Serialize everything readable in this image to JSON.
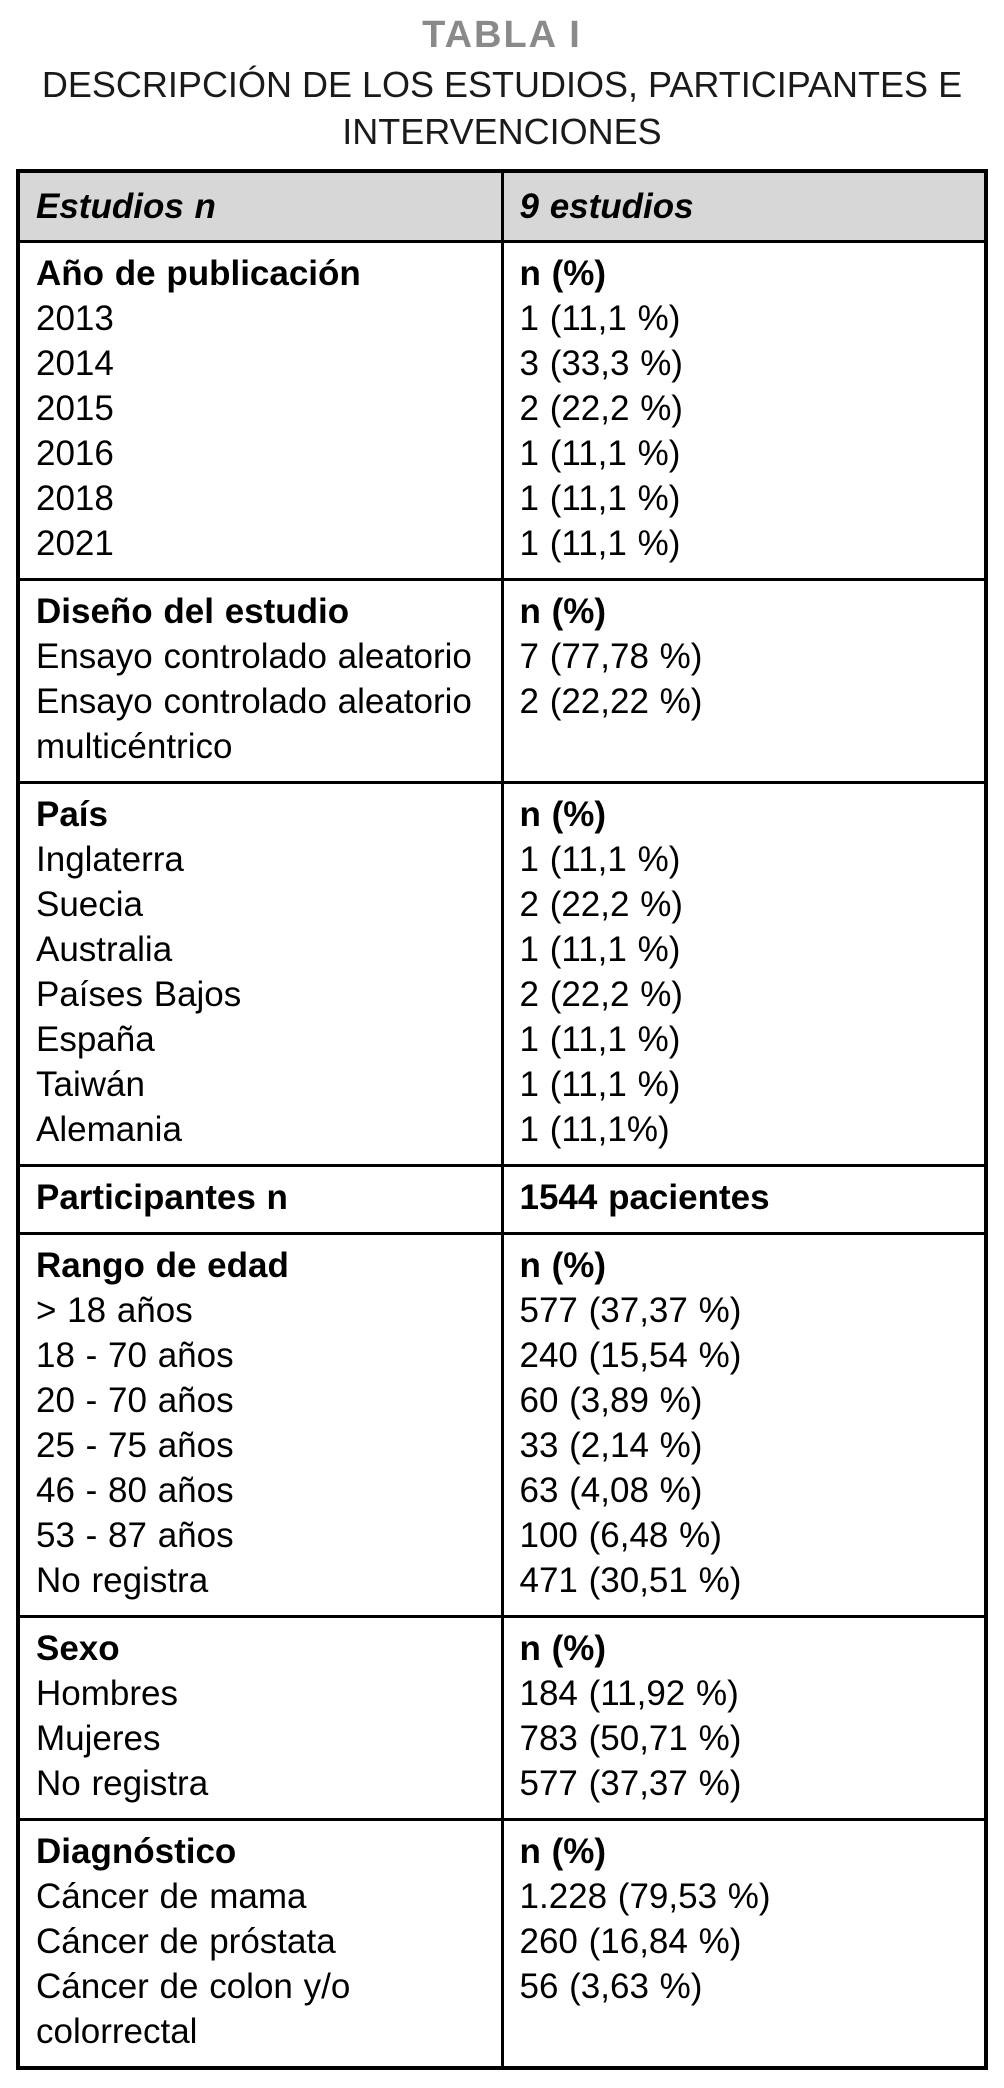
{
  "page": {
    "title": "TABLA I",
    "subtitle_line1": "DESCRIPCIÓN DE LOS ESTUDIOS, PARTICIPANTES E",
    "subtitle_line2": "INTERVENCIONES"
  },
  "colors": {
    "title_gray": "#8a8a8a",
    "header_background": "#d7d7d7",
    "border": "#000000"
  },
  "table": {
    "header": {
      "left": "Estudios n",
      "right": "9 estudios"
    },
    "sections": [
      {
        "heading": "Año de publicación",
        "value_heading": "n (%)",
        "items": [
          {
            "label": "2013",
            "value": "1 (11,1 %)"
          },
          {
            "label": "2014",
            "value": "3 (33,3 %)"
          },
          {
            "label": "2015",
            "value": "2 (22,2 %)"
          },
          {
            "label": "2016",
            "value": "1 (11,1 %)"
          },
          {
            "label": "2018",
            "value": "1 (11,1 %)"
          },
          {
            "label": "2021",
            "value": "1 (11,1 %)"
          }
        ]
      },
      {
        "heading": "Diseño del estudio",
        "value_heading": "n (%)",
        "items": [
          {
            "label": "Ensayo controlado aleatorio",
            "value": "7 (77,78 %)"
          },
          {
            "label": "Ensayo controlado aleatorio multicéntrico",
            "value": "2 (22,22 %)"
          }
        ]
      },
      {
        "heading": "País",
        "value_heading": "n (%)",
        "items": [
          {
            "label": "Inglaterra",
            "value": "1 (11,1 %)"
          },
          {
            "label": "Suecia",
            "value": "2 (22,2 %)"
          },
          {
            "label": "Australia",
            "value": "1 (11,1 %)"
          },
          {
            "label": "Países Bajos",
            "value": "2 (22,2 %)"
          },
          {
            "label": "España",
            "value": "1 (11,1 %)"
          },
          {
            "label": "Taiwán",
            "value": "1 (11,1 %)"
          },
          {
            "label": "Alemania",
            "value": "1 (11,1%)"
          }
        ]
      },
      {
        "heading": "Participantes n",
        "value_heading": "1544 pacientes",
        "items": []
      },
      {
        "heading": "Rango de edad",
        "value_heading": "n (%)",
        "items": [
          {
            "label": "> 18 años",
            "value": "577 (37,37 %)"
          },
          {
            "label": "18 - 70 años",
            "value": "240 (15,54 %)"
          },
          {
            "label": "20 - 70 años",
            "value": "60 (3,89 %)"
          },
          {
            "label": "25 - 75 años",
            "value": "33 (2,14 %)"
          },
          {
            "label": "46 - 80 años",
            "value": "63 (4,08 %)"
          },
          {
            "label": "53 - 87 años",
            "value": "100 (6,48 %)"
          },
          {
            "label": "No registra",
            "value": "471 (30,51 %)"
          }
        ]
      },
      {
        "heading": "Sexo",
        "value_heading": "n (%)",
        "items": [
          {
            "label": "Hombres",
            "value": "184 (11,92 %)"
          },
          {
            "label": "Mujeres",
            "value": "783 (50,71 %)"
          },
          {
            "label": "No registra",
            "value": "577 (37,37 %)"
          }
        ]
      },
      {
        "heading": "Diagnóstico",
        "value_heading": "n (%)",
        "items": [
          {
            "label": "Cáncer de mama",
            "value": "1.228 (79,53 %)"
          },
          {
            "label": "Cáncer de próstata",
            "value": "260 (16,84 %)"
          },
          {
            "label": "Cáncer de colon y/o colorrectal",
            "value": "56 (3,63 %)"
          }
        ]
      }
    ]
  }
}
